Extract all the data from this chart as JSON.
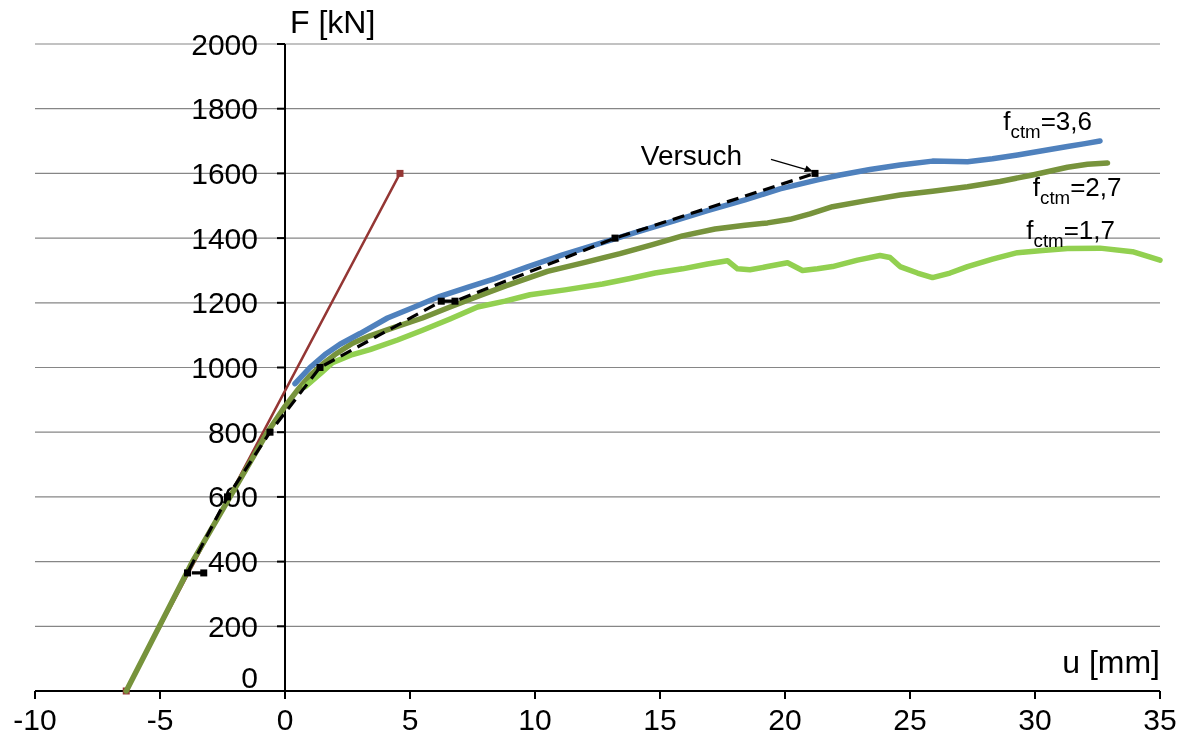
{
  "chart_data": {
    "type": "line",
    "xlabel": "u [mm]",
    "ylabel": "F [kN]",
    "xlim": [
      -10,
      35
    ],
    "ylim": [
      0,
      2000
    ],
    "xticks": [
      -10,
      -5,
      0,
      5,
      10,
      15,
      20,
      25,
      30,
      35
    ],
    "yticks": [
      0,
      200,
      400,
      600,
      800,
      1000,
      1200,
      1400,
      1600,
      1800,
      2000
    ],
    "grid": "y",
    "series": [
      {
        "color": "#943634",
        "marker": "square",
        "x": [
          -6.35,
          4.6
        ],
        "values": [
          0,
          1600
        ]
      },
      {
        "name": "f$_{ctm}$=2,7",
        "color": "#77933c",
        "x": [
          -6.35,
          -3.7,
          -0.7,
          0,
          0.5,
          1,
          1.5,
          2,
          2.7,
          3.4,
          4.4,
          5.5,
          6.6,
          7.7,
          9,
          10.5,
          12,
          13.4,
          14.7,
          15.9,
          17.2,
          18.4,
          19.3,
          20.2,
          21,
          21.9,
          23.2,
          24.6,
          25.9,
          27.3,
          28.6,
          29.9,
          31.3,
          32.1,
          32.9
        ],
        "values": [
          0,
          400,
          800,
          880,
          930,
          975,
          1010,
          1040,
          1075,
          1098,
          1125,
          1153,
          1187,
          1220,
          1257,
          1297,
          1325,
          1352,
          1380,
          1407,
          1428,
          1440,
          1447,
          1458,
          1475,
          1497,
          1515,
          1533,
          1545,
          1559,
          1575,
          1595,
          1619,
          1628,
          1632
        ]
      },
      {
        "name": "f$_{ctm}$=1,7",
        "color": "#92d050",
        "x": [
          0.8,
          1.4,
          1.9,
          2.7,
          3.4,
          4.5,
          5.5,
          6.6,
          7.7,
          8.8,
          9.8,
          11.2,
          12.7,
          13.8,
          14.8,
          15.9,
          16.9,
          17.7,
          18.1,
          18.6,
          19.3,
          20.1,
          20.7,
          21.3,
          21.9,
          22.9,
          23.8,
          24.2,
          24.6,
          25.3,
          25.9,
          26.6,
          27.3,
          28.3,
          29.3,
          30.3,
          31.3,
          32.6,
          33.9,
          35
        ],
        "values": [
          940,
          980,
          1015,
          1040,
          1055,
          1085,
          1115,
          1150,
          1187,
          1205,
          1225,
          1240,
          1258,
          1275,
          1292,
          1305,
          1320,
          1330,
          1305,
          1302,
          1312,
          1324,
          1300,
          1305,
          1312,
          1332,
          1346,
          1340,
          1312,
          1292,
          1278,
          1292,
          1312,
          1335,
          1355,
          1362,
          1368,
          1369,
          1358,
          1332
        ]
      },
      {
        "name": "f$_{ctm}$=3,6",
        "color": "#4f81bd",
        "x": [
          0.4,
          1,
          1.6,
          2.2,
          3,
          4.1,
          5.2,
          6.2,
          7.3,
          8.4,
          9.7,
          11.1,
          12.6,
          14.1,
          15.5,
          16.9,
          18.4,
          19.8,
          21.3,
          22.2,
          23.4,
          24.6,
          25.9,
          27.3,
          28.3,
          29.3,
          30.3,
          31.3,
          32,
          32.6
        ],
        "values": [
          950,
          1000,
          1040,
          1072,
          1105,
          1153,
          1188,
          1220,
          1248,
          1275,
          1311,
          1348,
          1384,
          1419,
          1452,
          1485,
          1518,
          1552,
          1580,
          1595,
          1612,
          1626,
          1638,
          1636,
          1645,
          1657,
          1670,
          1683,
          1692,
          1700
        ]
      },
      {
        "name": "Versuch",
        "color": "#000000",
        "marker": "square",
        "line_style": "dashed",
        "x": [
          -3.25,
          -3.9,
          -2.3,
          -0.6,
          1.4,
          6.25,
          6.8,
          13.2,
          21.2
        ],
        "values": [
          365,
          365,
          600,
          800,
          1000,
          1205,
          1205,
          1400,
          1600
        ]
      }
    ]
  }
}
